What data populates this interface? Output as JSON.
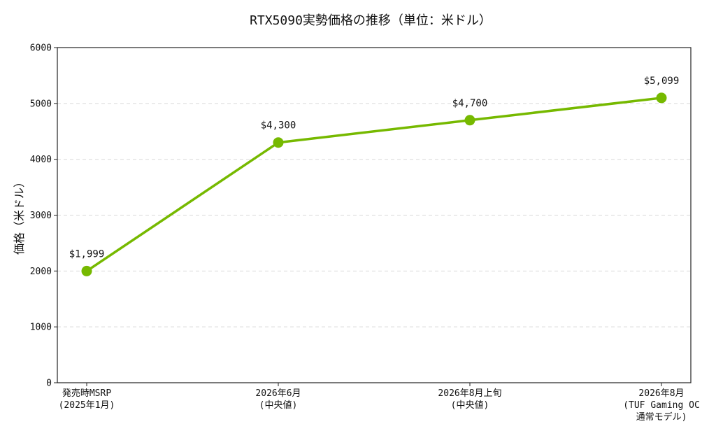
{
  "chart_data": {
    "type": "line",
    "title": "RTX5090実勢価格の推移（単位：米ドル）",
    "xlabel": "",
    "ylabel": "価格（米ドル）",
    "ylim": [
      0,
      6000
    ],
    "yticks": [
      0,
      1000,
      2000,
      3000,
      4000,
      5000,
      6000
    ],
    "grid": "y-dashed",
    "categories": [
      [
        "発売時MSRP",
        "(2025年1月)"
      ],
      [
        "2026年6月",
        "(中央値)"
      ],
      [
        "2026年8月上旬",
        "(中央値)"
      ],
      [
        "2026年8月",
        "(TUF Gaming OC",
        "通常モデル)"
      ]
    ],
    "series": [
      {
        "values": [
          1999,
          4300,
          4700,
          5099
        ],
        "labels": [
          "$1,999",
          "$4,300",
          "$4,700",
          "$5,099"
        ],
        "color": "#76b900"
      }
    ]
  }
}
